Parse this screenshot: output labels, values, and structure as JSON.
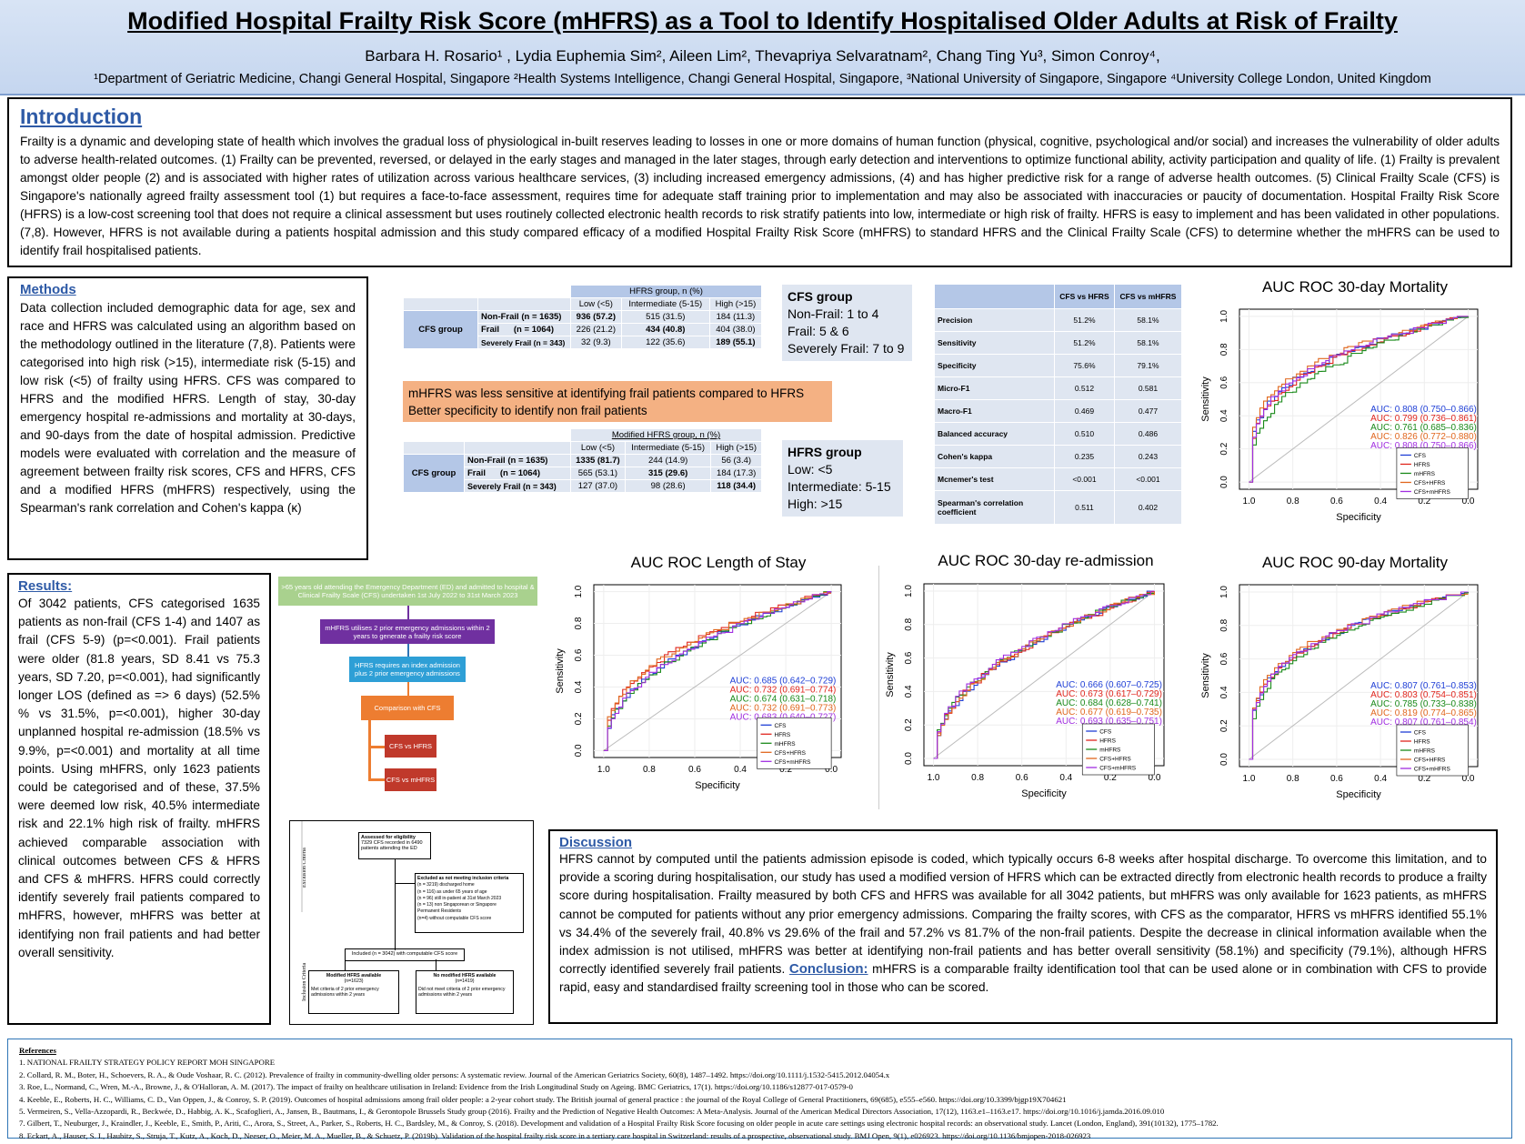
{
  "header": {
    "title": "Modified Hospital Frailty Risk Score (mHFRS) as a Tool to Identify Hospitalised Older Adults at Risk of Frailty",
    "authors": "Barbara H. Rosario¹ , Lydia Euphemia Sim², Aileen Lim², Thevapriya Selvaratnam², Chang Ting Yu³, Simon Conroy⁴,",
    "affiliations": "¹Department of Geriatric Medicine, Changi General Hospital, Singapore ²Health Systems Intelligence, Changi General Hospital, Singapore, ³National University of Singapore, Singapore ⁴University College London, United Kingdom"
  },
  "intro": {
    "heading": "Introduction",
    "text": "Frailty is a dynamic and developing state of health which involves the gradual loss of physiological in-built reserves leading to losses in one or more domains of human function (physical, cognitive, psychological and/or social) and increases the vulnerability of older adults to adverse health-related outcomes. (1) Frailty can be prevented, reversed, or delayed in the early stages and managed in the later stages, through early detection and interventions to optimize functional ability, activity participation and quality of life. (1)   Frailty is prevalent amongst older people (2) and is associated with higher rates of utilization across various healthcare services, (3) including increased emergency admissions, (4) and has higher predictive risk for a range of adverse health outcomes. (5)  Clinical Frailty Scale (CFS) is Singapore's nationally agreed frailty assessment tool (1) but requires a face-to-face assessment, requires time for adequate staff training prior to implementation and may also be associated with inaccuracies or paucity of documentation.  Hospital Frailty Risk Score (HFRS) is a low-cost screening tool that does not require a clinical assessment but uses routinely collected electronic health records to risk stratify patients into low, intermediate or high risk of frailty. HFRS is easy to implement and has been validated in other populations. (7,8). However, HFRS is not available during a patients hospital admission and this study compared efficacy of a modified Hospital Frailty Risk Score (mHFRS) to standard HFRS and the Clinical Frailty Scale (CFS) to determine whether the mHFRS can be used to identify frail hospitalised patients."
  },
  "methods": {
    "heading": "Methods",
    "text": "Data collection included demographic data for age, sex and race and HFRS was calculated using an algorithm based on the methodology outlined in the literature (7,8). Patients were categorised into high risk (>15), intermediate risk (5-15) and low risk (<5) of frailty using HFRS. CFS was compared to HFRS and the modified HFRS. Length of stay, 30-day emergency hospital re-admissions and mortality at 30-days, and 90-days from the date of hospital admission. Predictive models were evaluated with correlation and the measure of agreement between frailty risk scores, CFS and HFRS, CFS and a modified HFRS (mHFRS) respectively, using the Spearman's rank correlation and Cohen's kappa (κ)"
  },
  "results": {
    "heading": "Results:",
    "text": "Of 3042 patients, CFS categorised 1635 patients as non-frail (CFS 1-4) and 1407 as frail (CFS 5-9) (p=<0.001). Frail patients were older (81.8 years, SD 8.41 vs 75.3 years, SD 7.20, p=<0.001), had significantly longer LOS (defined as => 6 days) (52.5% % vs 31.5%, p=<0.001), higher 30-day unplanned hospital re-admission (18.5% vs 9.9%, p=<0.001) and mortality at all time points. Using mHFRS, only 1623 patients could be categorised and of these, 37.5% were deemed low risk, 40.5% intermediate risk and 22.1% high risk of frailty. mHFRS achieved comparable association with clinical outcomes between CFS & HFRS and CFS & mHFRS. HFRS could correctly identify severely frail patients compared to mHFRS, however, mHFRS was better at identifying non frail patients and had better overall sensitivity."
  },
  "table1": {
    "group_header": "HFRS group, n (%)",
    "cols": [
      "Low (<5)",
      "Intermediate (5-15)",
      "High (>15)"
    ],
    "row_group": "CFS group",
    "rows": [
      {
        "label": "Non-Frail (n = 1635)",
        "cells": [
          "936 (57.2)",
          "515 (31.5)",
          "184 (11.3)"
        ]
      },
      {
        "label": "Frail      (n = 1064)",
        "cells": [
          "226 (21.2)",
          "434 (40.8)",
          "404 (38.0)"
        ]
      },
      {
        "label": "Severely Frail (n = 343)",
        "cells": [
          "32 (9.3)",
          "122 (35.6)",
          "189 (55.1)"
        ]
      }
    ]
  },
  "table2": {
    "group_header": "Modified HFRS group, n (%)",
    "cols": [
      "Low (<5)",
      "Intermediate (5-15)",
      "High (>15)"
    ],
    "row_group": "CFS group",
    "rows": [
      {
        "label": "Non-Frail (n = 1635)",
        "cells": [
          "1335 (81.7)",
          "244 (14.9)",
          "56 (3.4)"
        ]
      },
      {
        "label": "Frail      (n = 1064)",
        "cells": [
          "565 (53.1)",
          "315 (29.6)",
          "184 (17.3)"
        ]
      },
      {
        "label": "Severely Frail (n = 343)",
        "cells": [
          "127 (37.0)",
          "98 (28.6)",
          "118 (34.4)"
        ]
      }
    ]
  },
  "cfs_box": {
    "title": "CFS group",
    "lines": [
      "Non-Frail: 1 to 4",
      "Frail: 5 & 6",
      "Severely Frail: 7 to 9"
    ]
  },
  "hfrs_box": {
    "title": "HFRS group",
    "lines": [
      "Low: <5",
      "Intermediate: 5-15",
      "High: >15"
    ]
  },
  "highlight": {
    "line1": "mHFRS was less sensitive at identifying frail patients compared to HFRS",
    "line2": "Better specificity to identify non frail patients"
  },
  "metrics": {
    "cols": [
      "CFS vs HFRS",
      "CFS vs mHFRS"
    ],
    "rows": [
      {
        "label": "Precision",
        "v": [
          "51.2%",
          "58.1%"
        ]
      },
      {
        "label": "Sensitivity",
        "v": [
          "51.2%",
          "58.1%"
        ]
      },
      {
        "label": "Specificity",
        "v": [
          "75.6%",
          "79.1%"
        ]
      },
      {
        "label": "Micro-F1",
        "v": [
          "0.512",
          "0.581"
        ]
      },
      {
        "label": "Macro-F1",
        "v": [
          "0.469",
          "0.477"
        ]
      },
      {
        "label": "Balanced accuracy",
        "v": [
          "0.510",
          "0.486"
        ]
      },
      {
        "label": "Cohen's kappa",
        "v": [
          "0.235",
          "0.243"
        ]
      },
      {
        "label": "Mcnemer's test",
        "v": [
          "<0.001",
          "<0.001"
        ]
      },
      {
        "label": "Spearman's correlation coefficient",
        "v": [
          "0.511",
          "0.402"
        ]
      }
    ]
  },
  "flowchart": {
    "step1": ">65 years old attending the Emergency Department (ED) and admitted to hospital & Clinical Frailty Scale (CFS) undertaken 1st July 2022 to 31st March 2023",
    "step2": "mHFRS utilises 2 prior emergency admissions within 2 years to generate a frailty risk score",
    "step3": "HFRS requires an index admission plus 2 prior emergency admissions",
    "step4": "Comparison with CFS",
    "step5": "CFS vs HFRS",
    "step6": "CFS vs mHFRS"
  },
  "consort": {
    "excl_label": "Exclusion Criteria",
    "incl_label": "Inclusion Criteria",
    "assessed": "Assessed for eligibility",
    "assessed_sub": "7329 CFS recorded in 6490 patients attending the ED",
    "excluded_title": "Excluded as not meeting inclusion criteria",
    "excluded_lines": [
      "(n = 3219) discharged home",
      "(n = 116) as under 65 years of age",
      "(n = 96) still in-patient at 31st March 2023",
      "(n = 13) non Singaporean or Singapore",
      "Permanent Residents",
      "(n=4) without computable CFS score"
    ],
    "included": "Included (n = 3042) with computable CFS score",
    "modified_title": "Modified HFRS available",
    "modified_n": "(n=1623)",
    "modified_desc": "Met criteria of 2 prior emergency admissions within 2 years",
    "nomod_title": "No modified HFRS available",
    "nomod_n": "(n=1419)",
    "nomod_desc": "Did not meet criteria of 2 prior emergency admissions within 2 years"
  },
  "discussion": {
    "heading": "Discussion",
    "text": "HFRS cannot by computed until the patients admission episode is coded, which typically occurs 6-8 weeks after hospital discharge. To overcome this limitation, and to provide a scoring during hospitalisation, our study has used a modified version of HFRS which can be extracted directly from electronic health records to produce a frailty score during hospitalisation. Frailty measured by both CFS and HFRS was available for all 3042 patients, but mHFRS was only available for 1623 patients, as mHFRS cannot be computed for patients without any prior emergency admissions. Comparing the frailty scores, with CFS as the comparator, HFRS vs mHFRS identified 55.1% vs 34.4% of the severely frail, 40.8% vs 29.6% of the frail and 57.2% vs 81.7% of the non-frail patients. Despite the decrease in clinical information available when the index admission is not utilised, mHFRS was better at identifying non-frail patients and has better overall sensitivity (58.1%) and specificity (79.1%), although HFRS correctly identified severely frail patients.",
    "conclusion_heading": "Conclusion:",
    "conclusion": " mHFRS is a comparable frailty identification tool that can be used alone or in combination with CFS to provide rapid, easy and standardised frailty screening tool in those who can be scored."
  },
  "references": {
    "heading": "References",
    "items": [
      "1. NATIONAL FRAILTY STRATEGY POLICY REPORT MOH SINGAPORE",
      "2. Collard, R. M., Boter, H., Schoevers, R. A., & Oude Voshaar, R. C. (2012). Prevalence of frailty in community-dwelling older persons: A systematic review. Journal of the American Geriatrics Society, 60(8), 1487–1492. https://doi.org/10.1111/j.1532-5415.2012.04054.x",
      "3. Roe, L., Normand, C., Wren, M.-A., Browne, J., & O'Halloran, A. M. (2017). The impact of frailty on healthcare utilisation in Ireland: Evidence from the Irish Longitudinal Study on Ageing. BMC Geriatrics, 17(1). https://doi.org/10.1186/s12877-017-0579-0",
      "4. Keeble, E., Roberts, H. C., Williams, C. D., Van Oppen, J., & Conroy, S. P. (2019). Outcomes of hospital admissions among frail older people: a 2-year cohort study. The British journal of general practice : the journal of the Royal College of General Practitioners, 69(685), e555–e560. https://doi.org/10.3399/bjgp19X704621",
      "5. Vermeiren, S., Vella-Azzopardi, R., Beckwée, D., Habbig, A. K., Scafoglieri, A., Jansen, B., Bautmans, I., & Gerontopole Brussels Study group (2016). Frailty and the Prediction of Negative Health Outcomes: A Meta-Analysis. Journal of the American Medical Directors Association, 17(12), 1163.e1–1163.e17. https://doi.org/10.1016/j.jamda.2016.09.010",
      "7. Gilbert, T., Neuburger, J., Kraindler, J., Keeble, E., Smith, P., Ariti, C., Arora, S., Street, A., Parker, S., Roberts, H. C., Bardsley, M., & Conroy, S. (2018). Development and validation of a Hospital Frailty Risk Score focusing on older people in acute care settings using electronic hospital records: an observational study. Lancet (London, England), 391(10132), 1775–1782.",
      "8. Eckart, A., Hauser, S. I., Haubitz, S., Struja, T., Kutz, A., Koch, D., Neeser, O., Meier, M. A., Mueller, B., & Schuetz, P. (2019b). Validation of the hospital frailty risk score in a tertiary care hospital in Switzerland: results of a prospective, observational study. BMJ Open, 9(1), e026923. https://doi.org/10.1136/bmjopen-2018-026923"
    ]
  },
  "colors": {
    "CFS": "#1f3fd6",
    "HFRS": "#e0261e",
    "mHFRS": "#1a8a1a",
    "CFS+HFRS": "#e0671e",
    "CFS+mHFRS": "#a12ee0"
  },
  "chart_data": [
    {
      "type": "line",
      "id": "roc30m",
      "title": "AUC ROC 30-day Mortality",
      "xlabel": "Specificity",
      "ylabel": "Sensitivity",
      "xlim": [
        1.0,
        0.0
      ],
      "ylim": [
        0.0,
        1.0
      ],
      "ticks": [
        "1.0",
        "0.8",
        "0.6",
        "0.4",
        "0.2",
        "0.0"
      ],
      "legend": [
        "CFS",
        "HFRS",
        "mHFRS",
        "CFS+HFRS",
        "CFS+mHFRS"
      ],
      "auc_labels": [
        "AUC: 0.808 (0.750–0.866)",
        "AUC: 0.799 (0.736–0.861)",
        "AUC: 0.761 (0.685–0.836)",
        "AUC: 0.826 (0.772–0.880)",
        "AUC: 0.808 (0.750–0.866)"
      ],
      "aucs": [
        0.808,
        0.799,
        0.761,
        0.826,
        0.808
      ]
    },
    {
      "type": "line",
      "id": "roclos",
      "title": "AUC ROC Length of Stay",
      "xlabel": "Specificity",
      "ylabel": "Sensitivity",
      "xlim": [
        1.0,
        0.0
      ],
      "ylim": [
        0.0,
        1.0
      ],
      "ticks": [
        "1.0",
        "0.8",
        "0.6",
        "0.4",
        "0.2",
        "0.0"
      ],
      "legend": [
        "CFS",
        "HFRS",
        "mHFRS",
        "CFS+HFRS",
        "CFS+mHFRS"
      ],
      "auc_labels": [
        "AUC: 0.685 (0.642–0.729)",
        "AUC: 0.732 (0.691–0.774)",
        "AUC: 0.674 (0.631–0.718)",
        "AUC: 0.732 (0.691–0.773)",
        "AUC: 0.683 (0.640–0.727)"
      ],
      "aucs": [
        0.685,
        0.732,
        0.674,
        0.732,
        0.683
      ]
    },
    {
      "type": "line",
      "id": "rocread",
      "title": "AUC ROC 30-day re-admission",
      "xlabel": "Specificity",
      "ylabel": "Sensitivity",
      "xlim": [
        1.0,
        0.0
      ],
      "ylim": [
        0.0,
        1.0
      ],
      "ticks": [
        "1.0",
        "0.8",
        "0.6",
        "0.4",
        "0.2",
        "0.0"
      ],
      "legend": [
        "CFS",
        "HFRS",
        "mHFRS",
        "CFS+HFRS",
        "CFS+mHFRS"
      ],
      "auc_labels": [
        "AUC: 0.666 (0.607–0.725)",
        "AUC: 0.673 (0.617–0.729)",
        "AUC: 0.684 (0.628–0.741)",
        "AUC: 0.677 (0.619–0.735)",
        "AUC: 0.693 (0.635–0.751)"
      ],
      "aucs": [
        0.666,
        0.673,
        0.684,
        0.677,
        0.693
      ]
    },
    {
      "type": "line",
      "id": "roc90m",
      "title": "AUC ROC 90-day Mortality",
      "xlabel": "Specificity",
      "ylabel": "Sensitivity",
      "xlim": [
        1.0,
        0.0
      ],
      "ylim": [
        0.0,
        1.0
      ],
      "ticks": [
        "1.0",
        "0.8",
        "0.6",
        "0.4",
        "0.2",
        "0.0"
      ],
      "legend": [
        "CFS",
        "HFRS",
        "mHFRS",
        "CFS+HFRS",
        "CFS+mHFRS"
      ],
      "auc_labels": [
        "AUC: 0.807 (0.761–0.853)",
        "AUC: 0.803 (0.754–0.851)",
        "AUC: 0.785 (0.733–0.838)",
        "AUC: 0.819 (0.774–0.865)",
        "AUC: 0.807 (0.761–0.854)"
      ],
      "aucs": [
        0.807,
        0.803,
        0.785,
        0.819,
        0.807
      ]
    }
  ]
}
